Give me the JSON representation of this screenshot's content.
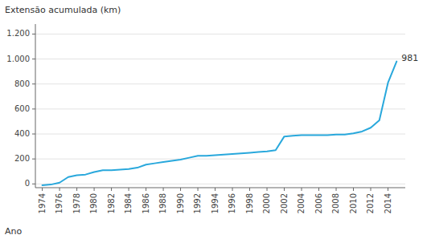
{
  "chart_data": {
    "type": "line",
    "y_label": "Extensão acumulada (km)",
    "x_label": "Ano",
    "x": [
      1974,
      1975,
      1976,
      1977,
      1978,
      1979,
      1980,
      1981,
      1982,
      1983,
      1984,
      1985,
      1986,
      1987,
      1988,
      1989,
      1990,
      1991,
      1992,
      1993,
      1994,
      1995,
      1996,
      1997,
      1998,
      1999,
      2000,
      2001,
      2002,
      2003,
      2004,
      2005,
      2006,
      2007,
      2008,
      2009,
      2010,
      2011,
      2012,
      2013,
      2014,
      2015
    ],
    "values": [
      -10,
      -5,
      10,
      55,
      70,
      75,
      95,
      110,
      110,
      115,
      120,
      130,
      155,
      165,
      175,
      185,
      195,
      210,
      225,
      225,
      230,
      235,
      240,
      245,
      250,
      255,
      260,
      270,
      380,
      385,
      390,
      390,
      390,
      390,
      395,
      395,
      405,
      420,
      450,
      510,
      810,
      981
    ],
    "color": "#29a8dc",
    "xlim": [
      1973.2,
      2016.0
    ],
    "xticks": [
      1974,
      1976,
      1978,
      1980,
      1982,
      1984,
      1986,
      1988,
      1990,
      1992,
      1994,
      1996,
      1998,
      2000,
      2002,
      2004,
      2006,
      2008,
      2010,
      2012,
      2014
    ],
    "ylim": [
      -30,
      1280
    ],
    "yticks": [
      0,
      200,
      400,
      600,
      800,
      {
        "value": 1000,
        "label": "1.000"
      },
      {
        "value": 1200,
        "label": "1.200"
      }
    ],
    "grid": true,
    "annotations": [
      {
        "text": "981",
        "x": 2015,
        "y": 981
      }
    ]
  }
}
